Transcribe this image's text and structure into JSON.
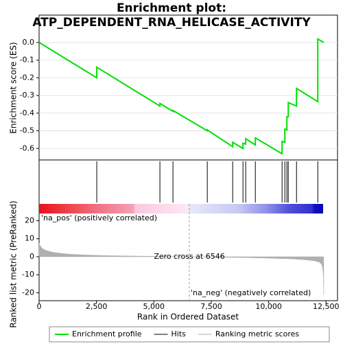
{
  "chart_data": [
    {
      "type": "line",
      "title": [
        "Enrichment plot:",
        "ATP_DEPENDENT_RNA_HELICASE_ACTIVITY"
      ],
      "ylabel": "Enrichment score (ES)",
      "series": [
        {
          "name": "Enrichment profile",
          "color": "#00e000",
          "x": [
            0,
            2512,
            2512,
            5263,
            5263,
            5831,
            5831,
            7327,
            7327,
            8433,
            8433,
            8882,
            8882,
            9001,
            9001,
            9420,
            9420,
            10586,
            10586,
            10706,
            10706,
            10795,
            10795,
            10855,
            10855,
            11214,
            11214,
            12141,
            12141,
            12400
          ],
          "values": [
            0,
            -0.2,
            -0.14,
            -0.36,
            -0.345,
            -0.39,
            -0.385,
            -0.5,
            -0.495,
            -0.59,
            -0.565,
            -0.6,
            -0.57,
            -0.575,
            -0.545,
            -0.58,
            -0.54,
            -0.63,
            -0.56,
            -0.565,
            -0.49,
            -0.495,
            -0.42,
            -0.42,
            -0.34,
            -0.36,
            -0.26,
            -0.335,
            0.02,
            0
          ]
        }
      ],
      "ylim": [
        -0.665,
        0.155
      ],
      "yticks": [
        {
          "value": 0,
          "label": "0.0"
        },
        -0.1,
        -0.2,
        -0.3,
        -0.4,
        -0.5,
        -0.6
      ],
      "grid": true
    },
    {
      "type": "rug",
      "name": "Hits",
      "color": "#000000",
      "x": [
        2512,
        5263,
        5831,
        7327,
        8433,
        8882,
        9001,
        9420,
        10586,
        10706,
        10795,
        10855,
        11214,
        12141
      ]
    },
    {
      "type": "area",
      "xlabel": "Rank in Ordered Dataset",
      "ylabel": "Ranked list metric (PreRanked)",
      "series": [
        {
          "name": "Ranking metric scores",
          "color": "#b0b0b0",
          "x": [
            0,
            50,
            150,
            300,
            600,
            1000,
            1500,
            2000,
            3000,
            4000,
            5000,
            6000,
            6546,
            7000,
            8000,
            9000,
            10000,
            11000,
            11500,
            12000,
            12200,
            12300,
            12350,
            12380,
            12400
          ],
          "values": [
            7.5,
            6,
            4.5,
            3.5,
            2.5,
            1.8,
            1.3,
            1.0,
            0.6,
            0.4,
            0.25,
            0.1,
            0,
            -0.1,
            -0.3,
            -0.5,
            -0.8,
            -1.2,
            -1.6,
            -2.3,
            -3,
            -4,
            -6,
            -10,
            -21
          ]
        }
      ],
      "xlim": [
        0,
        13000
      ],
      "xticks": [
        0,
        {
          "value": 2500,
          "label": "2,500"
        },
        {
          "value": 5000,
          "label": "5,000"
        },
        {
          "value": 7500,
          "label": "7,500"
        },
        {
          "value": 10000,
          "label": "10,000"
        },
        {
          "value": 12500,
          "label": "12,500"
        }
      ],
      "ylim": [
        -24.4,
        24
      ],
      "yticks": [
        20,
        10,
        0,
        -10,
        -20
      ],
      "zero_cross": 6546,
      "annotations": [
        "'na_pos' (positively correlated)",
        "Zero cross at 6546",
        "'na_neg' (negatively correlated)"
      ]
    }
  ]
}
